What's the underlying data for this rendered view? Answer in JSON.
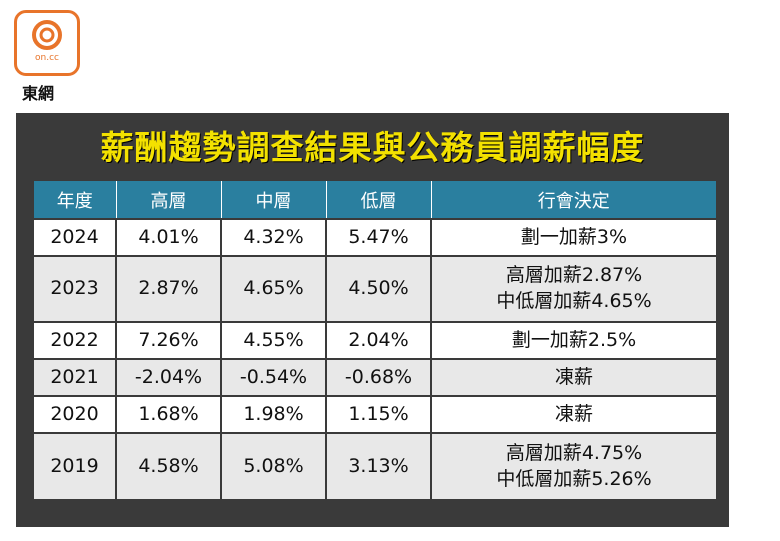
{
  "logo": {
    "mark_text": "on.cc",
    "caption": "東網"
  },
  "title": "薪酬趨勢調查結果與公務員調薪幅度",
  "headers": [
    "年度",
    "高層",
    "中層",
    "低層",
    "行會決定"
  ],
  "rows": [
    {
      "year": "2024",
      "high": "4.01%",
      "mid": "4.32%",
      "low": "5.47%",
      "decision": [
        "劃一加薪3%"
      ]
    },
    {
      "year": "2023",
      "high": "2.87%",
      "mid": "4.65%",
      "low": "4.50%",
      "decision": [
        "高層加薪2.87%",
        "中低層加薪4.65%"
      ]
    },
    {
      "year": "2022",
      "high": "7.26%",
      "mid": "4.55%",
      "low": "2.04%",
      "decision": [
        "劃一加薪2.5%"
      ]
    },
    {
      "year": "2021",
      "high": "-2.04%",
      "mid": "-0.54%",
      "low": "-0.68%",
      "decision": [
        "凍薪"
      ]
    },
    {
      "year": "2020",
      "high": "1.68%",
      "mid": "1.98%",
      "low": "1.15%",
      "decision": [
        "凍薪"
      ]
    },
    {
      "year": "2019",
      "high": "4.58%",
      "mid": "5.08%",
      "low": "3.13%",
      "decision": [
        "高層加薪4.75%",
        "中低層加薪5.26%"
      ]
    }
  ],
  "colors": {
    "title": "#f3e100",
    "header_bg": "#2a7f9f",
    "panel_bg": "#3a3a3a",
    "logo": "#e8742a"
  }
}
